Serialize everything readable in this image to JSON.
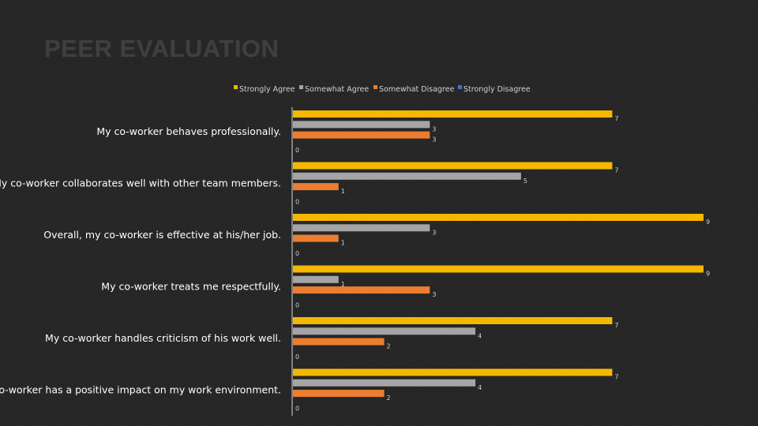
{
  "title": "PEER EVALUATION",
  "colors": {
    "strongly_agree": "#F4B800",
    "somewhat_agree": "#A5A5A5",
    "somewhat_disagree": "#ED7D31",
    "strongly_disagree": "#4472C4",
    "axis": "#d8d8d8"
  },
  "chart_data": {
    "type": "bar",
    "orientation": "horizontal",
    "title": "",
    "xlabel": "",
    "ylabel": "",
    "xlim": [
      0,
      9
    ],
    "grid": false,
    "legend_position": "top",
    "categories": [
      "My co-worker behaves professionally.",
      "My co-worker collaborates well with other team members.",
      "Overall, my co-worker is effective at his/her job.",
      "My co-worker treats me respectfully.",
      "My co-worker handles criticism of his work well.",
      "My co-worker has a positive impact on my work environment."
    ],
    "series": [
      {
        "name": "Strongly Agree",
        "color": "#F4B800",
        "values": [
          7,
          7,
          9,
          9,
          7,
          7
        ]
      },
      {
        "name": "Somewhat Agree",
        "color": "#A5A5A5",
        "values": [
          3,
          5,
          3,
          1,
          4,
          4
        ]
      },
      {
        "name": "Somewhat Disagree",
        "color": "#ED7D31",
        "values": [
          3,
          1,
          1,
          3,
          2,
          2
        ]
      },
      {
        "name": "Strongly Disagree",
        "color": "#4472C4",
        "values": [
          0,
          0,
          0,
          0,
          0,
          0
        ]
      }
    ]
  }
}
